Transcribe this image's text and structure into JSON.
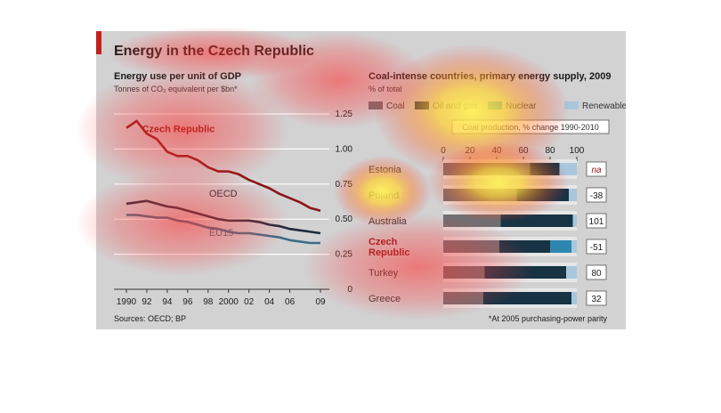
{
  "title": "Energy in the Czech Republic",
  "sources": "Sources: OECD; BP",
  "footnote": "*At 2005 purchasing-power parity",
  "colors": {
    "accent": "#c0221e",
    "czech": "#8d1414",
    "oecd": "#1e2a3a",
    "eu15": "#3b6d87",
    "coal": "#6f6f72",
    "oil_and_gas": "#173344",
    "nuclear": "#2c86ad",
    "renewable": "#a9c7dc",
    "panel_bg": "#d2d2d3"
  },
  "chart_data": [
    {
      "type": "line",
      "title": "Energy use per unit of GDP",
      "subtitle": "Tonnes of CO₂ equivalent per $bn*",
      "x": [
        1990,
        1991,
        1992,
        1993,
        1994,
        1995,
        1996,
        1997,
        1998,
        1999,
        2000,
        2001,
        2002,
        2003,
        2004,
        2005,
        2006,
        2007,
        2008,
        2009
      ],
      "x_tick_labels": [
        "1990",
        "92",
        "94",
        "96",
        "98",
        "2000",
        "02",
        "04",
        "06",
        "09"
      ],
      "x_tick_values": [
        1990,
        1992,
        1994,
        1996,
        1998,
        2000,
        2002,
        2004,
        2006,
        2009
      ],
      "ylim": [
        0,
        1.25
      ],
      "y_ticks": [
        "0",
        "0.25",
        "0.50",
        "0.75",
        "1.00",
        "1.25"
      ],
      "grid": true,
      "series": [
        {
          "name": "Czech Republic",
          "color_key": "czech",
          "values": [
            1.15,
            1.2,
            1.11,
            1.07,
            0.98,
            0.95,
            0.95,
            0.92,
            0.87,
            0.84,
            0.84,
            0.82,
            0.78,
            0.75,
            0.72,
            0.68,
            0.65,
            0.62,
            0.58,
            0.56
          ]
        },
        {
          "name": "OECD",
          "color_key": "oecd",
          "values": [
            0.61,
            0.62,
            0.63,
            0.61,
            0.59,
            0.58,
            0.56,
            0.54,
            0.52,
            0.5,
            0.49,
            0.49,
            0.49,
            0.48,
            0.46,
            0.45,
            0.43,
            0.42,
            0.41,
            0.4
          ]
        },
        {
          "name": "EU15",
          "color_key": "eu15",
          "values": [
            0.53,
            0.53,
            0.52,
            0.51,
            0.51,
            0.49,
            0.48,
            0.46,
            0.44,
            0.43,
            0.41,
            0.4,
            0.4,
            0.39,
            0.38,
            0.37,
            0.35,
            0.34,
            0.33,
            0.33
          ]
        }
      ]
    },
    {
      "type": "bar",
      "title": "Coal-intense countries, primary energy supply, 2009",
      "subtitle": "% of total",
      "stacked": true,
      "orientation": "horizontal",
      "xlim": [
        0,
        100
      ],
      "x_ticks": [
        "0",
        "20",
        "40",
        "60",
        "80",
        "100"
      ],
      "categories": [
        "Estonia",
        "Poland",
        "Australia",
        "Czech Republic",
        "Turkey",
        "Greece"
      ],
      "bold_categories": [
        "Czech Republic"
      ],
      "series": [
        {
          "name": "Coal",
          "color_key": "coal",
          "values": [
            65,
            55,
            43,
            42,
            31,
            30
          ]
        },
        {
          "name": "Oil and gas",
          "color_key": "oil_and_gas",
          "values": [
            22,
            39,
            54,
            38,
            61,
            66
          ]
        },
        {
          "name": "Nuclear",
          "color_key": "nuclear",
          "values": [
            0,
            0,
            0,
            16,
            0,
            0
          ]
        },
        {
          "name": "Renewable",
          "color_key": "renewable",
          "values": [
            13,
            6,
            3,
            4,
            8,
            4
          ]
        }
      ],
      "change_header": "Coal production, % change 1990-2010",
      "coal_production_change": [
        "na",
        "-38",
        "101",
        "-51",
        "80",
        "32"
      ]
    }
  ]
}
